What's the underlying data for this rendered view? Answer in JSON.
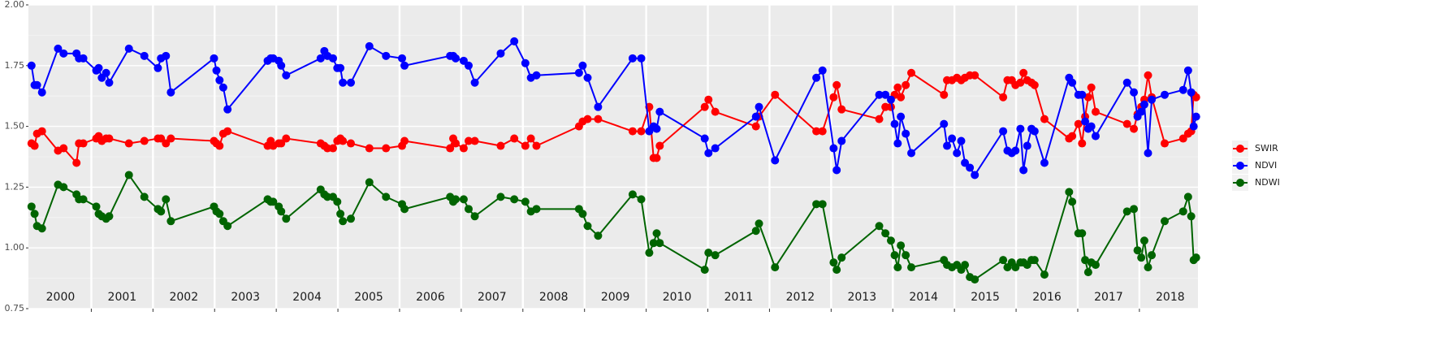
{
  "chart_data": {
    "type": "line",
    "x": [
      2000.03,
      2000.08,
      2000.12,
      2000.2,
      2000.46,
      2000.55,
      2000.76,
      2000.8,
      2000.87,
      2001.08,
      2001.12,
      2001.17,
      2001.24,
      2001.29,
      2001.61,
      2001.86,
      2002.08,
      2002.13,
      2002.21,
      2002.29,
      2002.99,
      2003.03,
      2003.08,
      2003.14,
      2003.21,
      2003.86,
      2003.91,
      2003.95,
      2004.04,
      2004.08,
      2004.16,
      2004.72,
      2004.78,
      2004.83,
      2004.92,
      2004.99,
      2005.04,
      2005.08,
      2005.21,
      2005.51,
      2005.78,
      2006.04,
      2006.08,
      2006.82,
      2006.87,
      2006.91,
      2007.04,
      2007.12,
      2007.22,
      2007.64,
      2007.86,
      2008.04,
      2008.13,
      2008.22,
      2008.91,
      2008.97,
      2009.05,
      2009.22,
      2009.78,
      2009.92,
      2010.05,
      2010.12,
      2010.17,
      2010.22,
      2010.95,
      2011.01,
      2011.12,
      2011.78,
      2011.83,
      2012.09,
      2012.76,
      2012.86,
      2013.04,
      2013.09,
      2013.17,
      2013.78,
      2013.88,
      2013.97,
      2014.03,
      2014.08,
      2014.13,
      2014.21,
      2014.3,
      2014.83,
      2014.88,
      2014.96,
      2015.04,
      2015.11,
      2015.17,
      2015.25,
      2015.33,
      2015.79,
      2015.86,
      2015.93,
      2015.99,
      2016.07,
      2016.12,
      2016.18,
      2016.25,
      2016.3,
      2016.46,
      2016.86,
      2016.91,
      2017.01,
      2017.07,
      2017.12,
      2017.17,
      2017.22,
      2017.29,
      2017.8,
      2017.91,
      2017.97,
      2018.03,
      2018.08,
      2018.14,
      2018.2,
      2018.41,
      2018.71,
      2018.79,
      2018.84,
      2018.88,
      2018.92
    ],
    "series": [
      {
        "name": "SWIR",
        "color": "#ff0000",
        "values": [
          1.43,
          1.42,
          1.47,
          1.48,
          1.4,
          1.41,
          1.35,
          1.43,
          1.43,
          1.45,
          1.46,
          1.44,
          1.45,
          1.45,
          1.43,
          1.44,
          1.45,
          1.45,
          1.43,
          1.45,
          1.44,
          1.43,
          1.42,
          1.47,
          1.48,
          1.42,
          1.44,
          1.42,
          1.43,
          1.43,
          1.45,
          1.43,
          1.42,
          1.41,
          1.41,
          1.44,
          1.45,
          1.44,
          1.43,
          1.41,
          1.41,
          1.42,
          1.44,
          1.41,
          1.45,
          1.43,
          1.41,
          1.44,
          1.44,
          1.42,
          1.45,
          1.42,
          1.45,
          1.42,
          1.5,
          1.52,
          1.53,
          1.53,
          1.48,
          1.48,
          1.58,
          1.37,
          1.37,
          1.42,
          1.58,
          1.61,
          1.56,
          1.5,
          1.54,
          1.63,
          1.48,
          1.48,
          1.62,
          1.67,
          1.57,
          1.53,
          1.58,
          1.58,
          1.63,
          1.66,
          1.62,
          1.67,
          1.72,
          1.63,
          1.69,
          1.69,
          1.7,
          1.69,
          1.7,
          1.71,
          1.71,
          1.62,
          1.69,
          1.69,
          1.67,
          1.68,
          1.72,
          1.69,
          1.68,
          1.67,
          1.53,
          1.45,
          1.46,
          1.51,
          1.43,
          1.54,
          1.62,
          1.66,
          1.56,
          1.51,
          1.49,
          1.55,
          1.58,
          1.61,
          1.71,
          1.62,
          1.43,
          1.45,
          1.47,
          1.48,
          1.63,
          1.62
        ]
      },
      {
        "name": "NDVI",
        "color": "#0000ff",
        "values": [
          1.75,
          1.67,
          1.67,
          1.64,
          1.82,
          1.8,
          1.8,
          1.78,
          1.78,
          1.73,
          1.74,
          1.7,
          1.72,
          1.68,
          1.82,
          1.79,
          1.74,
          1.78,
          1.79,
          1.64,
          1.78,
          1.73,
          1.69,
          1.66,
          1.57,
          1.77,
          1.78,
          1.78,
          1.77,
          1.75,
          1.71,
          1.78,
          1.81,
          1.79,
          1.78,
          1.74,
          1.74,
          1.68,
          1.68,
          1.83,
          1.79,
          1.78,
          1.75,
          1.79,
          1.79,
          1.78,
          1.77,
          1.75,
          1.68,
          1.8,
          1.85,
          1.76,
          1.7,
          1.71,
          1.72,
          1.75,
          1.7,
          1.58,
          1.78,
          1.78,
          1.48,
          1.5,
          1.49,
          1.56,
          1.45,
          1.39,
          1.41,
          1.54,
          1.58,
          1.36,
          1.7,
          1.73,
          1.41,
          1.32,
          1.44,
          1.63,
          1.63,
          1.61,
          1.51,
          1.43,
          1.54,
          1.47,
          1.39,
          1.51,
          1.42,
          1.45,
          1.39,
          1.44,
          1.35,
          1.33,
          1.3,
          1.48,
          1.4,
          1.39,
          1.4,
          1.49,
          1.32,
          1.42,
          1.49,
          1.48,
          1.35,
          1.7,
          1.68,
          1.63,
          1.63,
          1.52,
          1.49,
          1.5,
          1.46,
          1.68,
          1.64,
          1.54,
          1.56,
          1.59,
          1.39,
          1.61,
          1.63,
          1.65,
          1.73,
          1.64,
          1.5,
          1.54
        ]
      },
      {
        "name": "NDWI",
        "color": "#006400",
        "values": [
          1.17,
          1.14,
          1.09,
          1.08,
          1.26,
          1.25,
          1.22,
          1.2,
          1.2,
          1.17,
          1.14,
          1.13,
          1.12,
          1.13,
          1.3,
          1.21,
          1.16,
          1.15,
          1.2,
          1.11,
          1.17,
          1.15,
          1.14,
          1.11,
          1.09,
          1.2,
          1.19,
          1.19,
          1.17,
          1.15,
          1.12,
          1.24,
          1.22,
          1.21,
          1.21,
          1.19,
          1.14,
          1.11,
          1.12,
          1.27,
          1.21,
          1.18,
          1.16,
          1.21,
          1.19,
          1.2,
          1.2,
          1.16,
          1.13,
          1.21,
          1.2,
          1.19,
          1.15,
          1.16,
          1.16,
          1.14,
          1.09,
          1.05,
          1.22,
          1.2,
          0.98,
          1.02,
          1.06,
          1.02,
          0.91,
          0.98,
          0.97,
          1.07,
          1.1,
          0.92,
          1.18,
          1.18,
          0.94,
          0.91,
          0.96,
          1.09,
          1.06,
          1.03,
          0.97,
          0.92,
          1.01,
          0.97,
          0.92,
          0.95,
          0.93,
          0.92,
          0.93,
          0.91,
          0.93,
          0.88,
          0.87,
          0.95,
          0.92,
          0.94,
          0.92,
          0.94,
          0.94,
          0.93,
          0.95,
          0.95,
          0.89,
          1.23,
          1.19,
          1.06,
          1.06,
          0.95,
          0.9,
          0.94,
          0.93,
          1.15,
          1.16,
          0.99,
          0.96,
          1.03,
          0.92,
          0.97,
          1.11,
          1.15,
          1.21,
          1.13,
          0.95,
          0.96
        ]
      }
    ],
    "xlim": [
      1999.98,
      2018.95
    ],
    "xgrid": [
      2001,
      2002,
      2003,
      2004,
      2005,
      2006,
      2007,
      2008,
      2009,
      2010,
      2011,
      2012,
      2013,
      2014,
      2015,
      2016,
      2017,
      2018
    ],
    "year_labels": [
      {
        "value": 2000.5,
        "label": "2000"
      },
      {
        "value": 2001.5,
        "label": "2001"
      },
      {
        "value": 2002.5,
        "label": "2002"
      },
      {
        "value": 2003.5,
        "label": "2003"
      },
      {
        "value": 2004.5,
        "label": "2004"
      },
      {
        "value": 2005.5,
        "label": "2005"
      },
      {
        "value": 2006.5,
        "label": "2006"
      },
      {
        "value": 2007.5,
        "label": "2007"
      },
      {
        "value": 2008.5,
        "label": "2008"
      },
      {
        "value": 2009.5,
        "label": "2009"
      },
      {
        "value": 2010.5,
        "label": "2010"
      },
      {
        "value": 2011.5,
        "label": "2011"
      },
      {
        "value": 2012.5,
        "label": "2012"
      },
      {
        "value": 2013.5,
        "label": "2013"
      },
      {
        "value": 2014.5,
        "label": "2014"
      },
      {
        "value": 2015.5,
        "label": "2015"
      },
      {
        "value": 2016.5,
        "label": "2016"
      },
      {
        "value": 2017.5,
        "label": "2017"
      },
      {
        "value": 2018.5,
        "label": "2018"
      }
    ],
    "ylim": [
      0.75,
      2.0
    ],
    "yticks": [
      {
        "value": 0.75,
        "label": "0.75"
      },
      {
        "value": 1.0,
        "label": "1.00"
      },
      {
        "value": 1.25,
        "label": "1.25"
      },
      {
        "value": 1.5,
        "label": "1.50"
      },
      {
        "value": 1.75,
        "label": "1.75"
      },
      {
        "value": 2.0,
        "label": "2.00"
      }
    ],
    "grid": true,
    "legend": "right"
  }
}
